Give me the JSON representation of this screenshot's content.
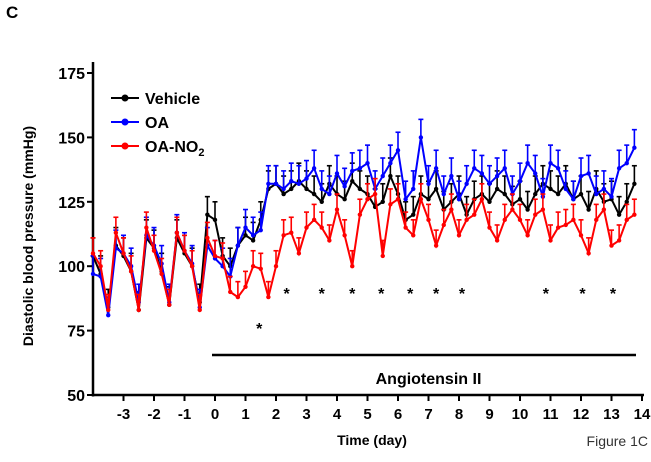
{
  "panel_label": "C",
  "figure_caption": "Figure 1C",
  "chart_data": {
    "type": "line",
    "xlabel": "Time (day)",
    "ylabel": "Diastolic blood pressure (mmHg)",
    "xlim": [
      -4,
      14
    ],
    "ylim": [
      50,
      175
    ],
    "xticks": [
      -3,
      -2,
      -1,
      0,
      1,
      2,
      3,
      4,
      5,
      6,
      7,
      8,
      9,
      10,
      11,
      12,
      13,
      14
    ],
    "yticks": [
      50,
      75,
      100,
      125,
      150,
      175
    ],
    "legend_position": "top-left",
    "x_step_days": 0.25,
    "x_start": -4,
    "series": [
      {
        "name": "Vehicle",
        "color": "#000000",
        "sem": 7,
        "values": [
          104,
          97,
          84,
          108,
          104,
          98,
          83,
          111,
          107,
          98,
          85,
          111,
          105,
          100,
          86,
          120,
          118,
          104,
          100,
          108,
          112,
          110,
          118,
          130,
          132,
          128,
          130,
          133,
          130,
          128,
          125,
          132,
          128,
          126,
          133,
          130,
          128,
          123,
          125,
          135,
          128,
          118,
          120,
          128,
          126,
          130,
          122,
          125,
          128,
          120,
          126,
          128,
          125,
          130,
          128,
          124,
          126,
          122,
          128,
          132,
          130,
          128,
          132,
          126,
          128,
          122,
          130,
          125,
          126,
          120,
          125,
          132
        ]
      },
      {
        "name": "OA",
        "color": "#0000FF",
        "sem": 7,
        "values": [
          97,
          96,
          81,
          107,
          105,
          100,
          86,
          112,
          108,
          101,
          86,
          113,
          106,
          101,
          84,
          108,
          103,
          100,
          96,
          108,
          115,
          112,
          114,
          132,
          132,
          130,
          133,
          132,
          134,
          138,
          130,
          128,
          136,
          131,
          137,
          138,
          140,
          130,
          135,
          140,
          145,
          126,
          130,
          150,
          132,
          138,
          128,
          135,
          126,
          132,
          138,
          136,
          132,
          135,
          138,
          128,
          133,
          140,
          136,
          127,
          140,
          138,
          130,
          126,
          135,
          136,
          128,
          130,
          127,
          138,
          140,
          146
        ]
      },
      {
        "name": "OA-NO2",
        "color": "#FF0000",
        "sem": 6,
        "values": [
          105,
          100,
          83,
          113,
          105,
          98,
          83,
          115,
          106,
          97,
          85,
          113,
          106,
          100,
          83,
          111,
          104,
          103,
          90,
          88,
          92,
          100,
          99,
          88,
          100,
          112,
          113,
          105,
          115,
          118,
          115,
          110,
          122,
          112,
          100,
          120,
          126,
          128,
          104,
          124,
          126,
          115,
          112,
          126,
          118,
          108,
          116,
          122,
          112,
          118,
          120,
          126,
          115,
          110,
          118,
          122,
          118,
          112,
          120,
          122,
          110,
          115,
          116,
          118,
          112,
          105,
          118,
          122,
          108,
          110,
          118,
          120
        ]
      }
    ],
    "legend": [
      "Vehicle",
      "OA",
      "OA-NO2"
    ],
    "significance_marker": "*",
    "significance_days": [
      1.45,
      2.35,
      3.5,
      4.5,
      5.45,
      6.4,
      7.25,
      8.1,
      10.85,
      12.05,
      13.05
    ],
    "treatment_bar": {
      "label": "Angiotensin II",
      "start_day": 0,
      "end_day": 14
    }
  }
}
